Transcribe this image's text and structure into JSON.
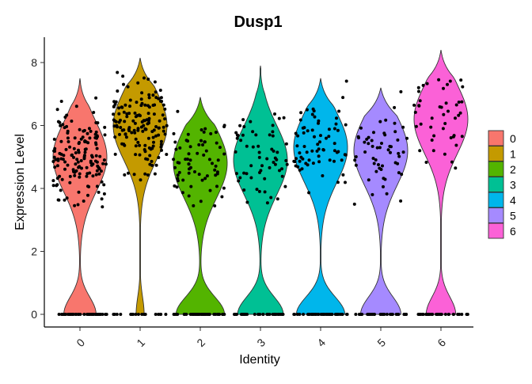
{
  "chart_data": {
    "type": "violin",
    "title": "Dusp1",
    "xlabel": "Identity",
    "ylabel": "Expression Level",
    "categories": [
      "0",
      "1",
      "2",
      "3",
      "4",
      "5",
      "6"
    ],
    "y_ticks": [
      "0",
      "2",
      "4",
      "6",
      "8"
    ],
    "ylim": [
      -0.4,
      8.5
    ],
    "grid": false,
    "legend_position": "right",
    "legend": [
      "0",
      "1",
      "2",
      "3",
      "4",
      "5",
      "6"
    ],
    "colors": [
      "#F8766D",
      "#C49A00",
      "#53B400",
      "#00C094",
      "#00B6EB",
      "#A58AFF",
      "#FB61D7"
    ],
    "series": [
      {
        "name": "0",
        "max": 7.5,
        "dense_center": 5.0,
        "bottom_mass": 0.6,
        "points_expr": 150,
        "points_zero": 40
      },
      {
        "name": "1",
        "max": 8.15,
        "dense_center": 6.0,
        "bottom_mass": 0.15,
        "points_expr": 150,
        "points_zero": 20
      },
      {
        "name": "2",
        "max": 6.9,
        "dense_center": 4.8,
        "bottom_mass": 0.9,
        "points_expr": 70,
        "points_zero": 40
      },
      {
        "name": "3",
        "max": 7.9,
        "dense_center": 4.9,
        "bottom_mass": 0.85,
        "points_expr": 60,
        "points_zero": 40
      },
      {
        "name": "4",
        "max": 7.5,
        "dense_center": 5.3,
        "bottom_mass": 0.9,
        "points_expr": 70,
        "points_zero": 40
      },
      {
        "name": "5",
        "max": 7.2,
        "dense_center": 5.2,
        "bottom_mass": 0.75,
        "points_expr": 55,
        "points_zero": 35
      },
      {
        "name": "6",
        "max": 8.4,
        "dense_center": 6.2,
        "bottom_mass": 0.55,
        "points_expr": 45,
        "points_zero": 30
      }
    ]
  }
}
